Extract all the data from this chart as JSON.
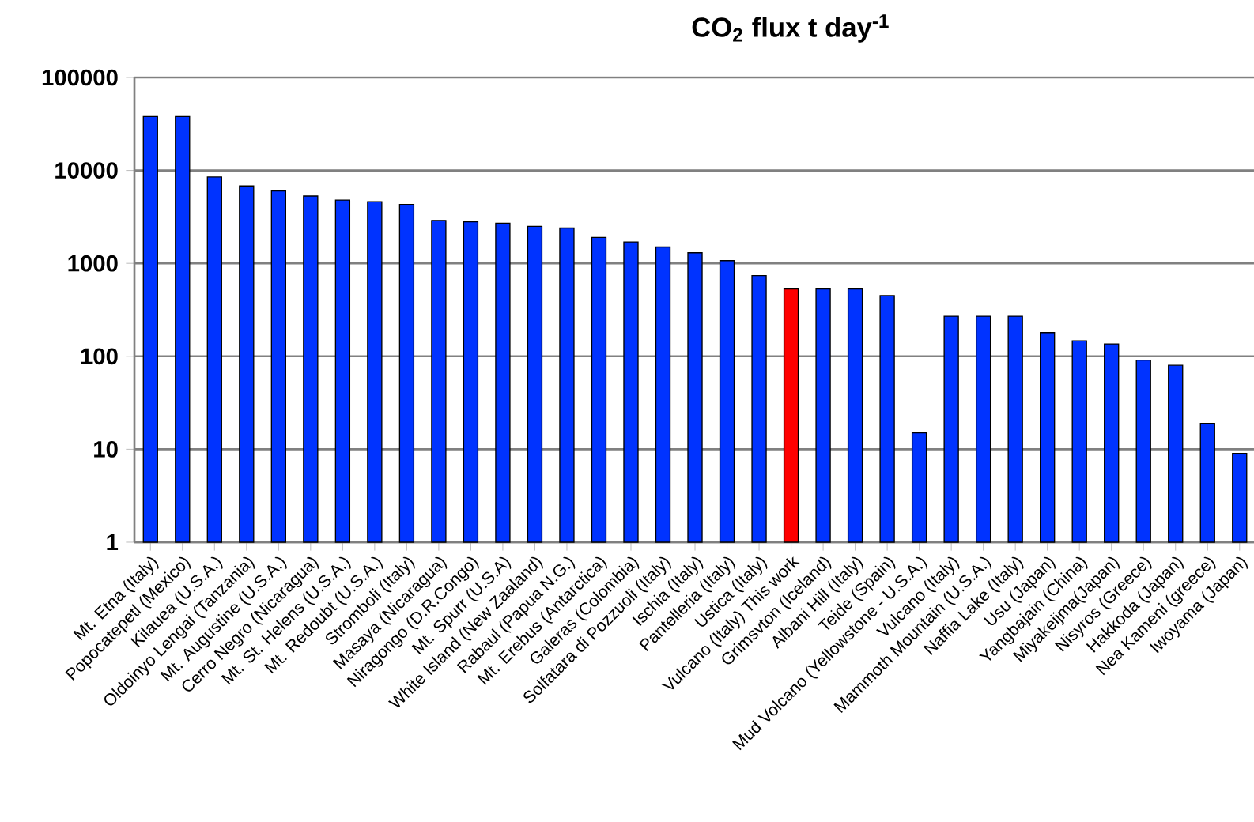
{
  "chart_data": {
    "type": "bar",
    "title": "CO$_{2}$ flux t day$^{-1}$",
    "categories": [
      "Mt. Etna (Italy)",
      "Popocatepetl (Mexico)",
      "Kilauea (U.S.A.)",
      "Oldoinyo Lengai (Tanzania)",
      "Mt. Augustine (U.S.A.)",
      "Cerro Negro (Nicaragua)",
      "Mt. St. Helens (U.S.A.)",
      "Mt. Redoubt (U.S.A.)",
      "Stromboli (Italy)",
      "Masaya (Nicaragua)",
      "Niragongo (D.R.Congo)",
      "Mt. Spurr (U.S.A)",
      "White Island (New Zaaland)",
      "Rabaul (Papua N.G.)",
      "Mt. Erebus (Antarctica)",
      "Galeras (Colombia)",
      "Solfatara di Pozzuoli (Italy)",
      "Ischia (Italy)",
      "Pantelleria (Italy)",
      "Ustica (Italy)",
      "Vulcano (Italy) This work",
      "Grimsvton (Iceland)",
      "Albani Hill (Italy)",
      "Teide (Spain)",
      "Mud Volcano (Yellowstone - U.S.A.)",
      "Vulcano (Italy)",
      "Mammoth Mountain (U.S.A.)",
      "Naffia Lake (Italy)",
      "Usu (Japan)",
      "Yangbajain (China)",
      "Miyakeijma(Japan)",
      "Nisyros (Greece)",
      "Hakkoda (Japan)",
      "Nea Kameni (greece)",
      "Iwoyama (Japan)"
    ],
    "values": [
      38000,
      38000,
      8500,
      6800,
      6000,
      5300,
      4800,
      4600,
      4300,
      2900,
      2800,
      2700,
      2500,
      2400,
      1900,
      1700,
      1500,
      1300,
      1070,
      740,
      530,
      530,
      530,
      450,
      15,
      270,
      270,
      270,
      180,
      147,
      136,
      91,
      80,
      19,
      9
    ],
    "colors": [
      "#0033ff",
      "#0033ff",
      "#0033ff",
      "#0033ff",
      "#0033ff",
      "#0033ff",
      "#0033ff",
      "#0033ff",
      "#0033ff",
      "#0033ff",
      "#0033ff",
      "#0033ff",
      "#0033ff",
      "#0033ff",
      "#0033ff",
      "#0033ff",
      "#0033ff",
      "#0033ff",
      "#0033ff",
      "#0033ff",
      "#ff0000",
      "#0033ff",
      "#0033ff",
      "#0033ff",
      "#0033ff",
      "#0033ff",
      "#0033ff",
      "#0033ff",
      "#0033ff",
      "#0033ff",
      "#0033ff",
      "#0033ff",
      "#0033ff",
      "#0033ff",
      "#0033ff"
    ],
    "log": "y",
    "ylim": [
      1,
      100000
    ],
    "yticks": [
      1,
      10,
      100,
      1000,
      10000,
      100000
    ],
    "grid": "y"
  }
}
